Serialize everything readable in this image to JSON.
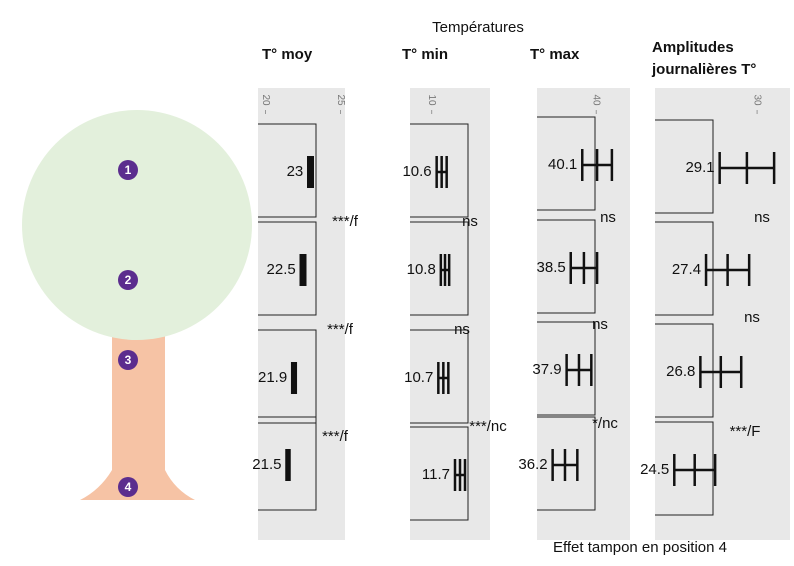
{
  "title": "Températures",
  "footer": "Effet tampon en position 4",
  "positions": [
    "1",
    "2",
    "3",
    "4"
  ],
  "panels": [
    {
      "title": [
        "T° moy"
      ],
      "xlim": [
        19.5,
        25.3
      ],
      "xticks": [
        20,
        25
      ],
      "values": [
        23,
        22.5,
        21.9,
        21.5
      ],
      "errors": [
        0.15,
        0.15,
        0.12,
        0.1
      ],
      "significance": [
        "***/f",
        "***/f",
        "***/f"
      ]
    },
    {
      "title": [
        "T° min"
      ],
      "xlim": [
        8.7,
        13.5
      ],
      "xticks": [
        10
      ],
      "values": [
        10.6,
        10.8,
        10.7,
        11.7
      ],
      "errors": [
        0.3,
        0.25,
        0.3,
        0.3
      ],
      "significance": [
        "ns",
        "ns",
        "***/nc"
      ]
    },
    {
      "title": [
        "T° max"
      ],
      "xlim": [
        32.8,
        44.1
      ],
      "xticks": [
        40
      ],
      "values": [
        40.1,
        38.5,
        37.9,
        36.2
      ],
      "errors": [
        1.8,
        1.6,
        1.5,
        1.5
      ],
      "significance": [
        "ns",
        "ns",
        "*/nc"
      ]
    },
    {
      "title": [
        "Amplitudes",
        "journalières T°"
      ],
      "xlim": [
        21,
        32.9
      ],
      "xticks": [
        30
      ],
      "values": [
        29.1,
        27.4,
        26.8,
        24.5
      ],
      "errors": [
        2.4,
        1.9,
        1.8,
        1.8
      ],
      "significance": [
        "ns",
        "ns",
        "***/F"
      ]
    }
  ]
}
